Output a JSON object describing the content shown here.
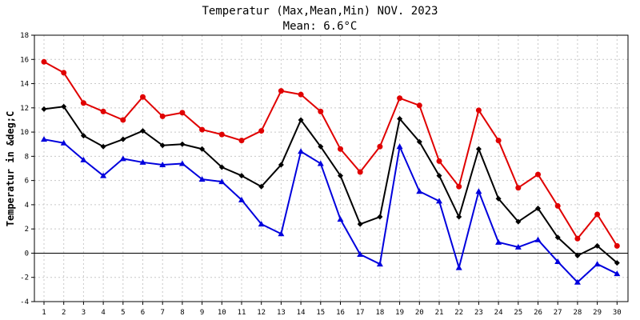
{
  "chart_data": {
    "type": "line",
    "title": "Temperatur (Max,Mean,Min) NOV. 2023",
    "subtitle": "Mean: 6.6°C",
    "xlabel": "",
    "ylabel": "Temperatur in &deg;C",
    "ylim": [
      -4,
      18
    ],
    "yticks": [
      -4,
      -2,
      0,
      2,
      4,
      6,
      8,
      10,
      12,
      14,
      16,
      18
    ],
    "grid": true,
    "categories": [
      1,
      2,
      3,
      4,
      5,
      6,
      7,
      8,
      9,
      10,
      11,
      12,
      13,
      14,
      15,
      16,
      17,
      18,
      19,
      20,
      21,
      22,
      23,
      24,
      25,
      26,
      27,
      28,
      29,
      30
    ],
    "series": [
      {
        "name": "Max",
        "color": "#e00000",
        "marker": "circle",
        "values": [
          15.8,
          14.9,
          12.4,
          11.7,
          11.0,
          12.9,
          11.3,
          11.6,
          10.2,
          9.8,
          9.3,
          10.1,
          13.4,
          13.1,
          11.7,
          8.6,
          6.7,
          8.8,
          12.8,
          12.2,
          7.6,
          5.5,
          11.8,
          9.3,
          5.4,
          6.5,
          3.9,
          1.2,
          3.2,
          0.6
        ]
      },
      {
        "name": "Mean",
        "color": "#000000",
        "marker": "diamond",
        "values": [
          11.9,
          12.1,
          9.7,
          8.8,
          9.4,
          10.1,
          8.9,
          9.0,
          8.6,
          7.1,
          6.4,
          5.5,
          7.3,
          11.0,
          8.8,
          6.4,
          2.4,
          3.0,
          11.1,
          9.2,
          6.4,
          3.0,
          8.6,
          4.5,
          2.6,
          3.7,
          1.3,
          -0.2,
          0.6,
          -0.8
        ]
      },
      {
        "name": "Min",
        "color": "#0000dd",
        "marker": "triangle",
        "values": [
          9.4,
          9.1,
          7.7,
          6.4,
          7.8,
          7.5,
          7.3,
          7.4,
          6.1,
          5.9,
          4.4,
          2.4,
          1.6,
          8.4,
          7.4,
          2.8,
          -0.1,
          -0.9,
          8.8,
          5.1,
          4.3,
          -1.2,
          5.1,
          0.9,
          0.5,
          1.1,
          -0.7,
          -2.4,
          -0.9,
          -1.7
        ]
      }
    ]
  }
}
